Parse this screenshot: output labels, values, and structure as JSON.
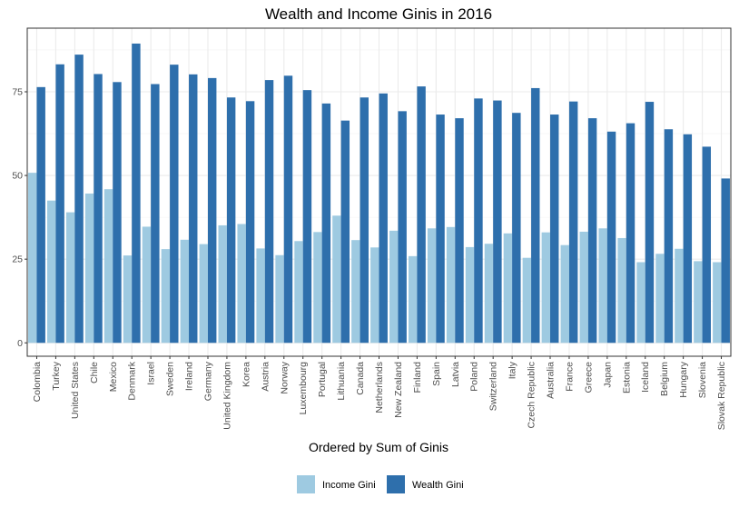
{
  "chart_data": {
    "type": "bar",
    "title": "Wealth and Income Ginis in 2016",
    "xlabel": "Ordered by Sum of Ginis",
    "ylabel": "",
    "ylim": [
      -4,
      94
    ],
    "yticks": [
      0,
      25,
      50,
      75
    ],
    "grid": true,
    "legend_position": "bottom",
    "categories": [
      "Colombia",
      "Turkey",
      "United States",
      "Chile",
      "Mexico",
      "Denmark",
      "Israel",
      "Sweden",
      "Ireland",
      "Germany",
      "United Kingdom",
      "Korea",
      "Austria",
      "Norway",
      "Luxembourg",
      "Portugal",
      "Lithuania",
      "Canada",
      "Netherlands",
      "New Zealand",
      "Finland",
      "Spain",
      "Latvia",
      "Poland",
      "Switzerland",
      "Italy",
      "Czech Republic",
      "Australia",
      "France",
      "Greece",
      "Japan",
      "Estonia",
      "Iceland",
      "Belgium",
      "Hungary",
      "Slovenia",
      "Slovak Republic"
    ],
    "series": [
      {
        "name": "Income Gini",
        "color": "#9ecae1",
        "values": [
          50.8,
          42.5,
          39.0,
          44.6,
          45.9,
          26.1,
          34.7,
          28.0,
          30.8,
          29.5,
          35.1,
          35.5,
          28.2,
          26.2,
          30.4,
          33.1,
          38.0,
          30.7,
          28.5,
          33.5,
          25.9,
          34.2,
          34.6,
          28.6,
          29.6,
          32.7,
          25.4,
          33.0,
          29.2,
          33.2,
          34.2,
          31.3,
          24.1,
          26.6,
          28.1,
          24.4,
          24.1
        ]
      },
      {
        "name": "Wealth Gini",
        "color": "#2e6fac",
        "values": [
          76.4,
          83.2,
          86.1,
          80.3,
          77.9,
          89.4,
          77.3,
          83.1,
          80.2,
          79.1,
          73.3,
          72.2,
          78.5,
          79.8,
          75.5,
          71.5,
          66.4,
          73.3,
          74.5,
          69.2,
          76.6,
          68.2,
          67.1,
          73.0,
          72.4,
          68.7,
          76.1,
          68.2,
          72.1,
          67.1,
          63.1,
          65.6,
          72.0,
          63.8,
          62.3,
          58.6,
          49.1
        ]
      }
    ]
  }
}
